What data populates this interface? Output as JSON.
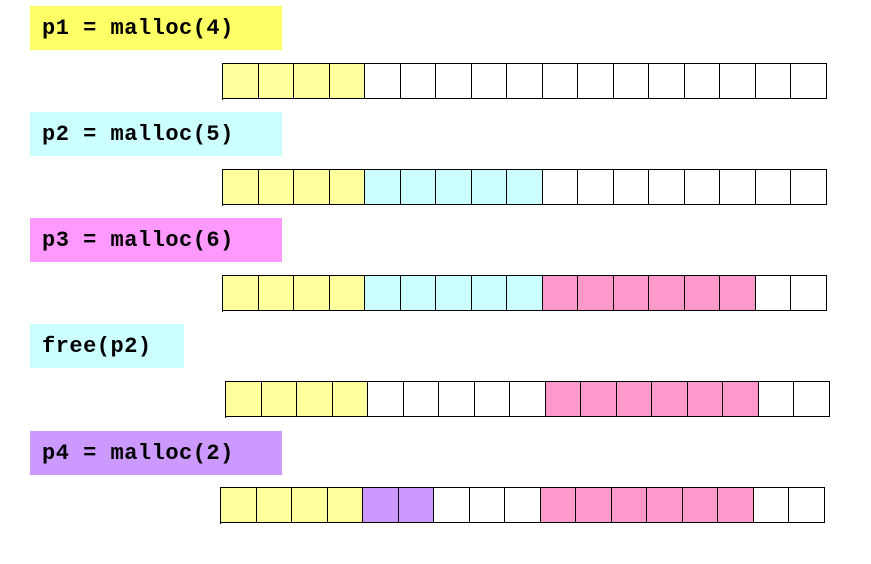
{
  "colors": {
    "yellow": "#ffff9e",
    "cyan": "#ccffff",
    "pink": "#ff99cc",
    "purple": "#cc99ff",
    "free": "#ffffff"
  },
  "steps": [
    {
      "label": "p1 = malloc(4)",
      "label_color": "#ffff66",
      "cells": [
        "yellow",
        "yellow",
        "yellow",
        "yellow",
        "free",
        "free",
        "free",
        "free",
        "free",
        "free",
        "free",
        "free",
        "free",
        "free",
        "free",
        "free",
        "free"
      ]
    },
    {
      "label": "p2 = malloc(5)",
      "label_color": "#ccffff",
      "cells": [
        "yellow",
        "yellow",
        "yellow",
        "yellow",
        "cyan",
        "cyan",
        "cyan",
        "cyan",
        "cyan",
        "free",
        "free",
        "free",
        "free",
        "free",
        "free",
        "free",
        "free"
      ]
    },
    {
      "label": "p3 = malloc(6)",
      "label_color": "#ff99ff",
      "cells": [
        "yellow",
        "yellow",
        "yellow",
        "yellow",
        "cyan",
        "cyan",
        "cyan",
        "cyan",
        "cyan",
        "pink",
        "pink",
        "pink",
        "pink",
        "pink",
        "pink",
        "free",
        "free"
      ]
    },
    {
      "label": "free(p2)",
      "label_color": "#ccffff",
      "cells": [
        "yellow",
        "yellow",
        "yellow",
        "yellow",
        "free",
        "free",
        "free",
        "free",
        "free",
        "pink",
        "pink",
        "pink",
        "pink",
        "pink",
        "pink",
        "free",
        "free"
      ]
    },
    {
      "label": "p4 = malloc(2)",
      "label_color": "#cc99ff",
      "cells": [
        "yellow",
        "yellow",
        "yellow",
        "yellow",
        "purple",
        "purple",
        "free",
        "free",
        "free",
        "pink",
        "pink",
        "pink",
        "pink",
        "pink",
        "pink",
        "free",
        "free"
      ]
    }
  ]
}
